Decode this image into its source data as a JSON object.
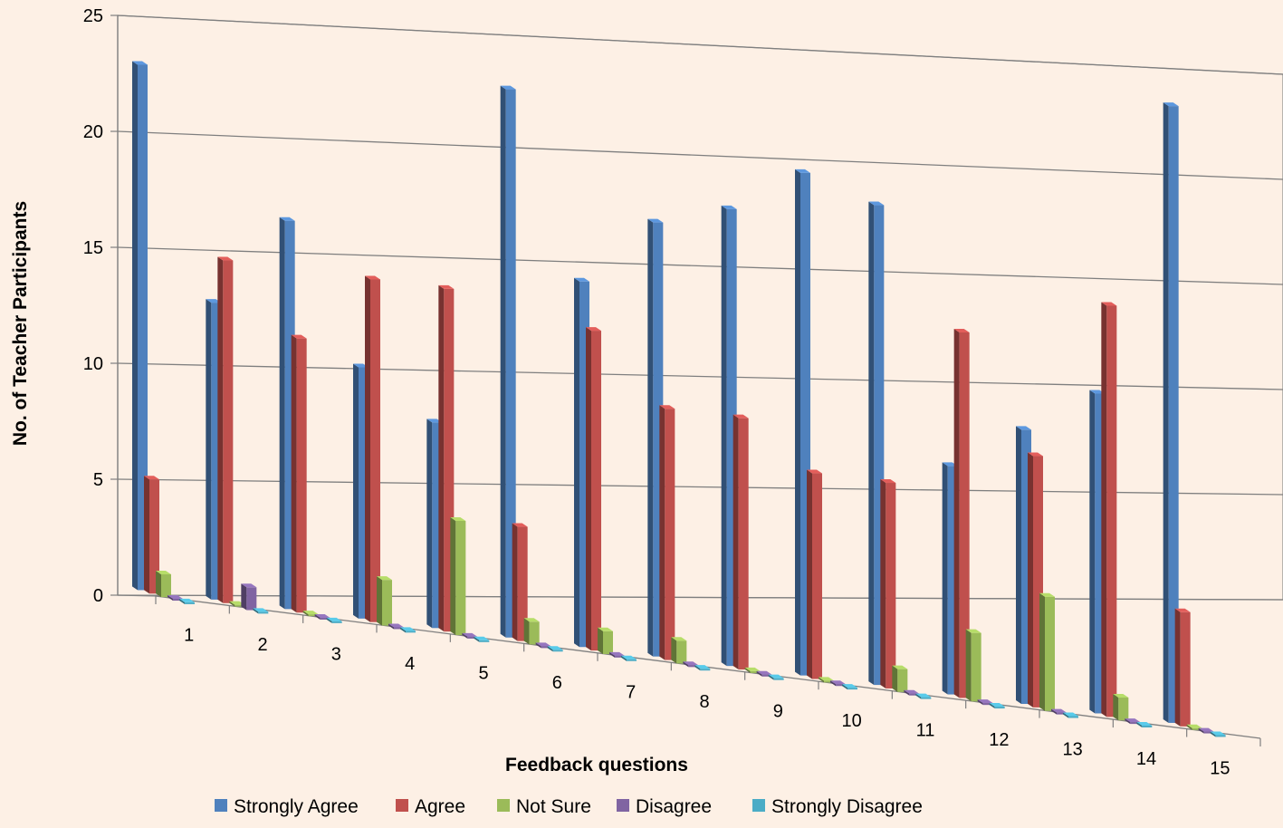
{
  "chart_data": {
    "type": "bar",
    "title": "",
    "xlabel": "Feedback questions",
    "ylabel": "No. of Teacher Participants",
    "ylim": [
      0,
      25
    ],
    "yticks": [
      "0",
      "5",
      "10",
      "15",
      "20",
      "25"
    ],
    "categories": [
      "1",
      "2",
      "3",
      "4",
      "5",
      "6",
      "7",
      "8",
      "9",
      "10",
      "11",
      "12",
      "13",
      "14",
      "15"
    ],
    "grid": true,
    "legend_position": "bottom",
    "series": [
      {
        "name": "Strongly Agree",
        "color": "#4f81bd",
        "values": [
          23,
          13,
          17,
          11,
          9,
          24,
          16,
          19,
          20,
          22,
          21,
          10,
          12,
          14,
          27
        ]
      },
      {
        "name": "Agree",
        "color": "#c0504d",
        "values": [
          5,
          15,
          12,
          15,
          15,
          5,
          14,
          11,
          11,
          9,
          9,
          16,
          11,
          18,
          5
        ]
      },
      {
        "name": "Not Sure",
        "color": "#9bbb59",
        "values": [
          1,
          0,
          0,
          2,
          5,
          1,
          1,
          1,
          0,
          0,
          1,
          3,
          5,
          1,
          0
        ]
      },
      {
        "name": "Disagree",
        "color": "#8064a2",
        "values": [
          0,
          1,
          0,
          0,
          0,
          0,
          0,
          0,
          0,
          0,
          0,
          0,
          0,
          0,
          0
        ]
      },
      {
        "name": "Strongly Disagree",
        "color": "#4bacc6",
        "values": [
          0,
          0,
          0,
          0,
          0,
          0,
          0,
          0,
          0,
          0,
          0,
          0,
          0,
          0,
          0
        ]
      }
    ]
  }
}
